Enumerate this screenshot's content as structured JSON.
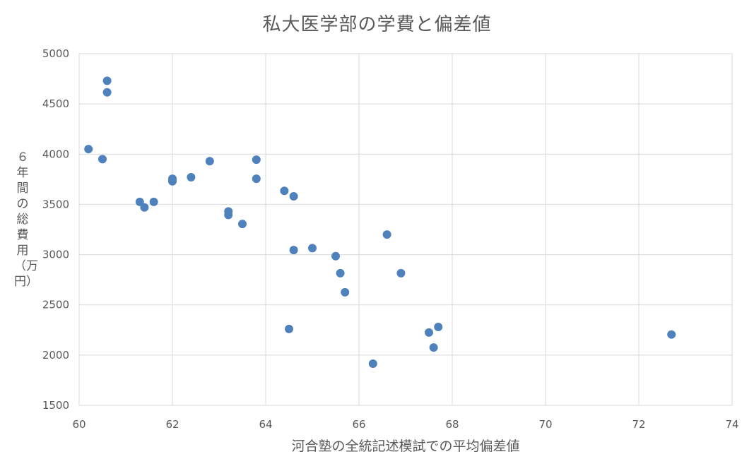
{
  "chart_data": {
    "type": "scatter",
    "title": "私大医学部の学費と偏差値",
    "xlabel": "河合塾の全統記述模試での平均偏差値",
    "ylabel": "６年間の総費用（万円）",
    "xlim": [
      60,
      74
    ],
    "ylim": [
      1500,
      5000
    ],
    "xticks": [
      "60",
      "62",
      "64",
      "66",
      "68",
      "70",
      "72",
      "74"
    ],
    "yticks": [
      "1500",
      "2000",
      "2500",
      "3000",
      "3500",
      "4000",
      "4500",
      "5000"
    ],
    "grid": true,
    "legend": "none",
    "marker_color": "#4F81BD",
    "points": [
      {
        "x": 60.2,
        "y": 4050
      },
      {
        "x": 60.5,
        "y": 3950
      },
      {
        "x": 60.6,
        "y": 4730
      },
      {
        "x": 60.6,
        "y": 4615
      },
      {
        "x": 61.3,
        "y": 3525
      },
      {
        "x": 61.4,
        "y": 3470
      },
      {
        "x": 61.6,
        "y": 3525
      },
      {
        "x": 62.0,
        "y": 3755
      },
      {
        "x": 62.0,
        "y": 3730
      },
      {
        "x": 62.4,
        "y": 3770
      },
      {
        "x": 62.8,
        "y": 3930
      },
      {
        "x": 63.2,
        "y": 3430
      },
      {
        "x": 63.2,
        "y": 3395
      },
      {
        "x": 63.5,
        "y": 3305
      },
      {
        "x": 63.8,
        "y": 3945
      },
      {
        "x": 63.8,
        "y": 3755
      },
      {
        "x": 64.4,
        "y": 3635
      },
      {
        "x": 64.6,
        "y": 3580
      },
      {
        "x": 64.5,
        "y": 2260
      },
      {
        "x": 64.6,
        "y": 3045
      },
      {
        "x": 65.0,
        "y": 3065
      },
      {
        "x": 65.5,
        "y": 2985
      },
      {
        "x": 65.6,
        "y": 2815
      },
      {
        "x": 65.7,
        "y": 2625
      },
      {
        "x": 66.3,
        "y": 1915
      },
      {
        "x": 66.6,
        "y": 3200
      },
      {
        "x": 66.9,
        "y": 2815
      },
      {
        "x": 67.5,
        "y": 2225
      },
      {
        "x": 67.6,
        "y": 2075
      },
      {
        "x": 67.7,
        "y": 2280
      },
      {
        "x": 72.7,
        "y": 2205
      }
    ]
  }
}
